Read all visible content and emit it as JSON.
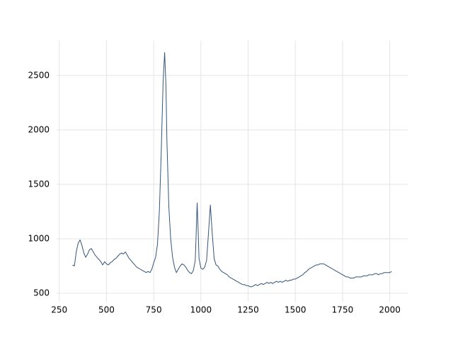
{
  "chart_data": {
    "type": "line",
    "x": [
      320,
      330,
      340,
      350,
      360,
      370,
      380,
      390,
      400,
      410,
      420,
      430,
      440,
      450,
      460,
      470,
      480,
      490,
      500,
      510,
      520,
      530,
      540,
      550,
      560,
      570,
      580,
      590,
      600,
      610,
      620,
      630,
      640,
      650,
      660,
      670,
      680,
      690,
      700,
      710,
      720,
      730,
      740,
      750,
      760,
      770,
      780,
      790,
      800,
      808,
      815,
      820,
      830,
      840,
      850,
      860,
      870,
      880,
      890,
      900,
      910,
      920,
      930,
      940,
      950,
      960,
      970,
      975,
      980,
      985,
      990,
      1000,
      1010,
      1020,
      1030,
      1040,
      1050,
      1060,
      1070,
      1080,
      1090,
      1100,
      1110,
      1120,
      1130,
      1140,
      1150,
      1160,
      1170,
      1180,
      1190,
      1200,
      1210,
      1220,
      1230,
      1240,
      1250,
      1260,
      1270,
      1280,
      1290,
      1300,
      1310,
      1320,
      1330,
      1340,
      1350,
      1360,
      1370,
      1380,
      1390,
      1400,
      1410,
      1420,
      1430,
      1440,
      1450,
      1460,
      1470,
      1480,
      1490,
      1500,
      1510,
      1520,
      1530,
      1540,
      1550,
      1560,
      1570,
      1580,
      1590,
      1600,
      1610,
      1620,
      1630,
      1640,
      1650,
      1660,
      1670,
      1680,
      1690,
      1700,
      1710,
      1720,
      1730,
      1740,
      1750,
      1760,
      1770,
      1780,
      1790,
      1800,
      1810,
      1820,
      1830,
      1840,
      1850,
      1860,
      1870,
      1880,
      1890,
      1900,
      1910,
      1920,
      1930,
      1940,
      1950,
      1960,
      1970,
      1980,
      1990,
      2000,
      2010
    ],
    "series": [
      {
        "color": "#34557a",
        "values": [
          760,
          750,
          880,
          960,
          990,
          940,
          870,
          830,
          860,
          900,
          910,
          880,
          850,
          830,
          810,
          790,
          760,
          790,
          770,
          760,
          780,
          790,
          810,
          820,
          840,
          860,
          870,
          860,
          880,
          850,
          820,
          800,
          780,
          760,
          740,
          730,
          720,
          710,
          700,
          690,
          700,
          690,
          720,
          780,
          830,
          950,
          1250,
          1800,
          2450,
          2710,
          2400,
          1900,
          1300,
          1000,
          830,
          740,
          690,
          720,
          750,
          770,
          760,
          740,
          710,
          690,
          680,
          710,
          800,
          1050,
          1330,
          1100,
          820,
          730,
          720,
          740,
          800,
          1050,
          1310,
          1050,
          820,
          760,
          750,
          720,
          700,
          690,
          680,
          670,
          650,
          640,
          630,
          620,
          610,
          600,
          590,
          580,
          580,
          570,
          570,
          560,
          560,
          570,
          580,
          570,
          580,
          590,
          580,
          590,
          600,
          590,
          600,
          590,
          600,
          610,
          600,
          610,
          600,
          610,
          620,
          610,
          620,
          620,
          630,
          630,
          640,
          650,
          660,
          670,
          690,
          700,
          720,
          730,
          740,
          750,
          760,
          760,
          770,
          770,
          770,
          760,
          750,
          740,
          730,
          720,
          710,
          700,
          690,
          680,
          670,
          660,
          650,
          650,
          640,
          640,
          640,
          650,
          650,
          650,
          650,
          660,
          660,
          660,
          670,
          670,
          670,
          680,
          680,
          670,
          680,
          680,
          690,
          690,
          690,
          690,
          700
        ]
      }
    ],
    "xlim": [
      236,
      2095
    ],
    "ylim": [
      421,
      2819
    ],
    "xticks": [
      250,
      500,
      750,
      1000,
      1250,
      1500,
      1750,
      2000
    ],
    "yticks": [
      500,
      1000,
      1500,
      2000,
      2500
    ],
    "grid": true
  }
}
